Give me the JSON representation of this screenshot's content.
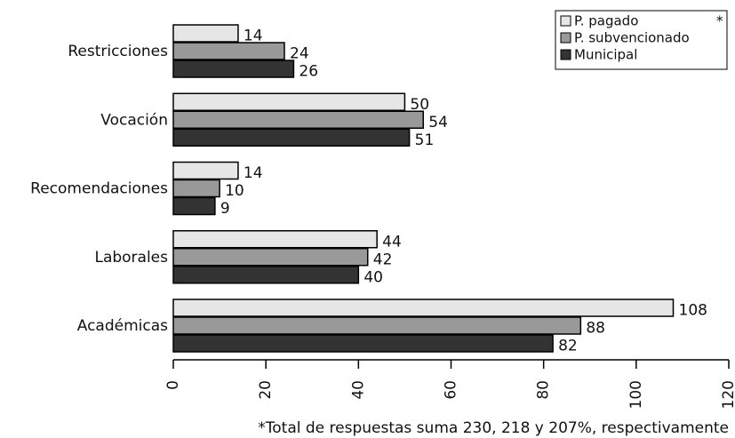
{
  "chart_data": {
    "type": "barh",
    "categories": [
      "Restricciones",
      "Vocación",
      "Recomendaciones",
      "Laborales",
      "Académicas"
    ],
    "series": [
      {
        "name": "P. pagado",
        "color": "#e6e6e6",
        "values": [
          14,
          50,
          14,
          44,
          108
        ]
      },
      {
        "name": "P. subvencionado",
        "color": "#999999",
        "values": [
          24,
          54,
          10,
          42,
          88
        ]
      },
      {
        "name": "Municipal",
        "color": "#333333",
        "values": [
          26,
          51,
          9,
          40,
          82
        ]
      }
    ],
    "xlim": [
      0,
      120
    ],
    "xticks": [
      0,
      20,
      40,
      60,
      80,
      100,
      120
    ],
    "grid": false,
    "legend_loc": "upper right",
    "legend_note": "*",
    "footnote": "*Total de respuestas suma 230, 218 y 207%, respectivamente"
  }
}
